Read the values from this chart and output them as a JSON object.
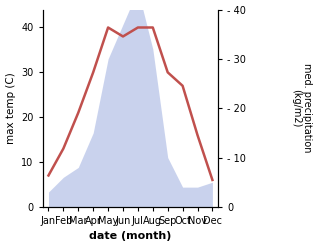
{
  "months": [
    "Jan",
    "Feb",
    "Mar",
    "Apr",
    "May",
    "Jun",
    "Jul",
    "Aug",
    "Sep",
    "Oct",
    "Nov",
    "Dec"
  ],
  "temperature": [
    7,
    13,
    21,
    30,
    40,
    38,
    40,
    40,
    30,
    27,
    16,
    6
  ],
  "precipitation": [
    3,
    6,
    8,
    15,
    30,
    37,
    44,
    32,
    10,
    4,
    4,
    5
  ],
  "temp_color": "#c0504d",
  "precip_fill_color": "#b8c4e8",
  "precip_edge_color": "#b8c4e8",
  "xlabel": "date (month)",
  "ylabel_left": "max temp (C)",
  "ylabel_right": "med. precipitation\n(kg/m2)",
  "ylim_left": [
    0,
    44
  ],
  "ylim_right": [
    0,
    40
  ],
  "yticks_left": [
    0,
    10,
    20,
    30,
    40
  ],
  "yticks_right": [
    0,
    10,
    20,
    30,
    40
  ],
  "temp_linewidth": 1.8,
  "precip_alpha": 0.75,
  "figsize": [
    3.18,
    2.47
  ],
  "dpi": 100
}
